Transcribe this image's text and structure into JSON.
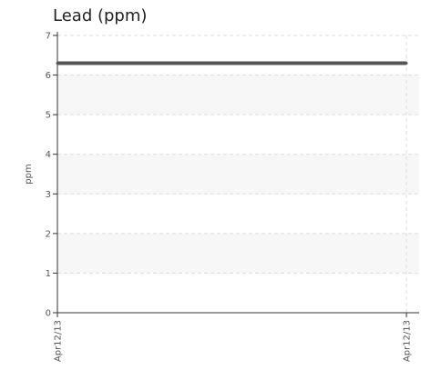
{
  "chart_data": {
    "type": "line",
    "title": "Lead (ppm)",
    "ylabel": "ppm",
    "xlabel": "",
    "x": [
      "Apr12/13",
      "Apr12/13"
    ],
    "series": [
      {
        "values": [
          6.3,
          6.3
        ]
      }
    ],
    "ylim": [
      0,
      7
    ],
    "yticks": [
      0,
      1,
      2,
      3,
      4,
      5,
      6,
      7
    ],
    "xtick_labels": [
      "Apr12/13",
      "Apr12/13"
    ],
    "grid": true,
    "colors": {
      "line": "#555555",
      "band": "#f7f7f7",
      "grid": "#dddddd",
      "axis": "#333333"
    }
  }
}
